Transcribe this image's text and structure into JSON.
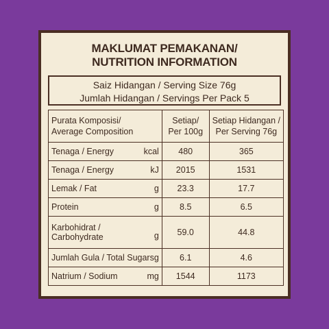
{
  "title": {
    "line1": "MAKLUMAT PEMAKANAN/",
    "line2": "NUTRITION INFORMATION"
  },
  "serving": {
    "line1": "Saiz Hidangan / Serving Size  76g",
    "line2": "Jumlah Hidangan / Servings Per Pack 5"
  },
  "header": {
    "composition_line1": "Purata Komposisi/",
    "composition_line2": "Average Composition",
    "per100_line1": "Setiap/",
    "per100_line2": "Per 100g",
    "perserving_line1": "Setiap Hidangan /",
    "perserving_line2": "Per Serving 76g"
  },
  "rows": [
    {
      "label": "Tenaga / Energy",
      "unit": "kcal",
      "per100": "480",
      "perserving": "365"
    },
    {
      "label": "Tenaga / Energy",
      "unit": "kJ",
      "per100": "2015",
      "perserving": "1531"
    },
    {
      "label": "Lemak / Fat",
      "unit": "g",
      "per100": "23.3",
      "perserving": "17.7"
    },
    {
      "label": "Protein",
      "unit": "g",
      "per100": "8.5",
      "perserving": "6.5"
    },
    {
      "label_line1": "Karbohidrat /",
      "label_line2": "Carbohydrate",
      "unit": "g",
      "per100": "59.0",
      "perserving": "44.8"
    },
    {
      "label": "Jumlah Gula / Total Sugars",
      "unit": "g",
      "per100": "6.1",
      "perserving": "4.6"
    },
    {
      "label": "Natrium / Sodium",
      "unit": "mg",
      "per100": "1544",
      "perserving": "1173"
    }
  ],
  "colors": {
    "background": "#7a3a9c",
    "panel": "#f4ecd9",
    "ink": "#3e2a20",
    "border": "#4a2e23"
  }
}
